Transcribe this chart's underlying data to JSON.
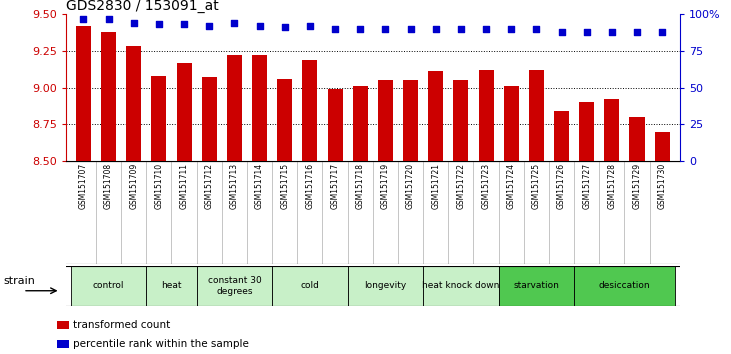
{
  "title": "GDS2830 / 153091_at",
  "samples": [
    "GSM151707",
    "GSM151708",
    "GSM151709",
    "GSM151710",
    "GSM151711",
    "GSM151712",
    "GSM151713",
    "GSM151714",
    "GSM151715",
    "GSM151716",
    "GSM151717",
    "GSM151718",
    "GSM151719",
    "GSM151720",
    "GSM151721",
    "GSM151722",
    "GSM151723",
    "GSM151724",
    "GSM151725",
    "GSM151726",
    "GSM151727",
    "GSM151728",
    "GSM151729",
    "GSM151730"
  ],
  "bar_values": [
    9.42,
    9.38,
    9.28,
    9.08,
    9.17,
    9.07,
    9.22,
    9.22,
    9.06,
    9.19,
    8.99,
    9.01,
    9.05,
    9.05,
    9.11,
    9.05,
    9.12,
    9.01,
    9.12,
    8.84,
    8.9,
    8.92,
    8.8,
    8.7
  ],
  "percentile_values": [
    97,
    97,
    94,
    93,
    93,
    92,
    94,
    92,
    91,
    92,
    90,
    90,
    90,
    90,
    90,
    90,
    90,
    90,
    90,
    88,
    88,
    88,
    88,
    88
  ],
  "bar_color": "#cc0000",
  "dot_color": "#0000cc",
  "ylim_left": [
    8.5,
    9.5
  ],
  "ylim_right": [
    0,
    100
  ],
  "yticks_left": [
    8.5,
    8.75,
    9.0,
    9.25,
    9.5
  ],
  "yticks_right": [
    0,
    25,
    50,
    75,
    100
  ],
  "ytick_labels_right": [
    "0",
    "25",
    "50",
    "75",
    "100%"
  ],
  "grid_values": [
    8.75,
    9.0,
    9.25
  ],
  "groups": [
    {
      "label": "control",
      "start": 0,
      "end": 2,
      "color": "#c8f0c8"
    },
    {
      "label": "heat",
      "start": 3,
      "end": 4,
      "color": "#c8f0c8"
    },
    {
      "label": "constant 30\ndegrees",
      "start": 5,
      "end": 7,
      "color": "#c8f0c8"
    },
    {
      "label": "cold",
      "start": 8,
      "end": 10,
      "color": "#c8f0c8"
    },
    {
      "label": "longevity",
      "start": 11,
      "end": 13,
      "color": "#c8f0c8"
    },
    {
      "label": "heat knock down",
      "start": 14,
      "end": 16,
      "color": "#c8f0c8"
    },
    {
      "label": "starvation",
      "start": 17,
      "end": 19,
      "color": "#50c850"
    },
    {
      "label": "desiccation",
      "start": 20,
      "end": 23,
      "color": "#50c850"
    }
  ],
  "legend_items": [
    {
      "label": "transformed count",
      "color": "#cc0000"
    },
    {
      "label": "percentile rank within the sample",
      "color": "#0000cc"
    }
  ],
  "strain_label": "strain",
  "background_color": "#ffffff",
  "axis_color_left": "#cc0000",
  "axis_color_right": "#0000cc",
  "xtick_bg": "#d0d0d0",
  "group_border_color": "#000000"
}
